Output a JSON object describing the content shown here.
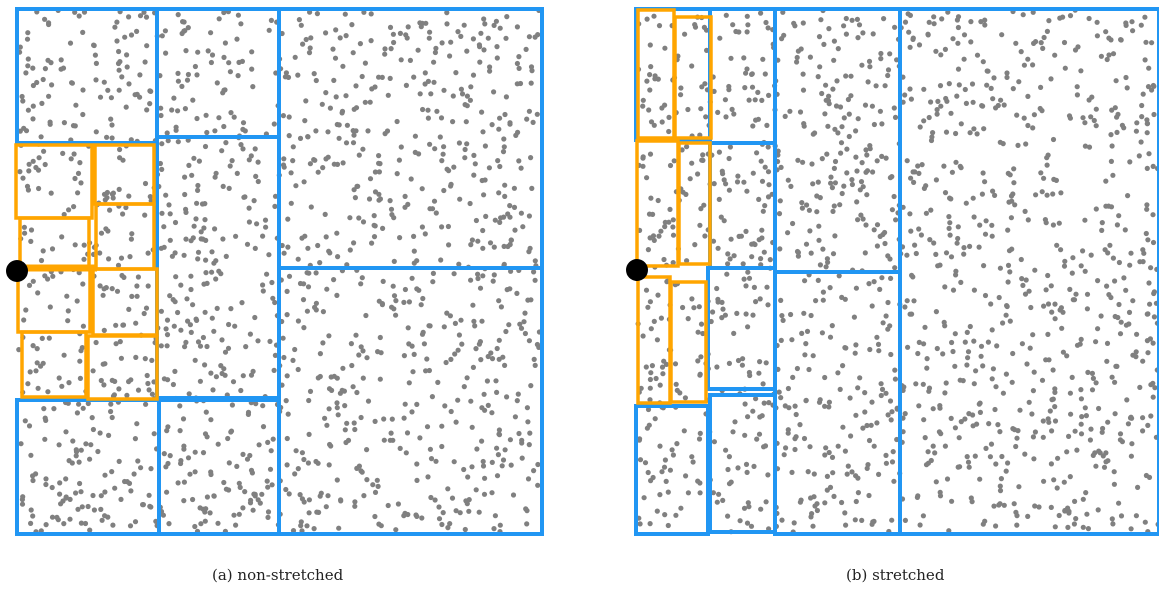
{
  "figure": {
    "captions": {
      "a": "(a) non-stretched",
      "b": "(b) stretched"
    },
    "colors": {
      "coarse_box": "#2196f3",
      "fine_box": "#ffa500",
      "point": "#808080",
      "query_point": "#000000",
      "background": "#ffffff"
    }
  }
}
